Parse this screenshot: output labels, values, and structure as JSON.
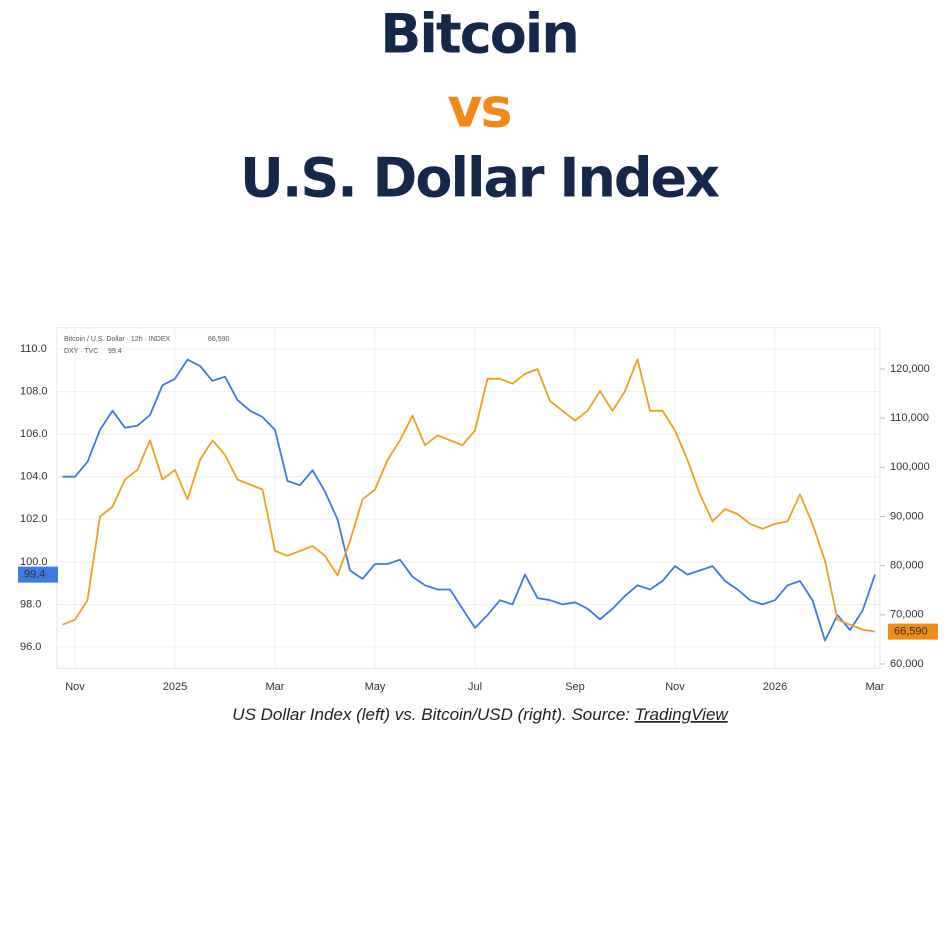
{
  "chart_data": {
    "type": "line",
    "title": [
      "Bitcoin",
      "vs",
      "U.S. Dollar Index"
    ],
    "title_colors": [
      "#16284a",
      "#f28a18",
      "#16284a"
    ],
    "caption": "US Dollar Index (left) vs. Bitcoin/USD (right). Source: ",
    "source": "TradingView",
    "categories": [
      null,
      "Nov",
      null,
      null,
      null,
      null,
      null,
      null,
      null,
      "2025",
      null,
      null,
      null,
      null,
      null,
      null,
      null,
      "Mar",
      null,
      null,
      null,
      null,
      null,
      null,
      null,
      "May",
      null,
      null,
      null,
      null,
      null,
      null,
      null,
      "Jul",
      null,
      null,
      null,
      null,
      null,
      null,
      null,
      "Sep",
      null,
      null,
      null,
      null,
      null,
      null,
      null,
      "Nov",
      null,
      null,
      null,
      null,
      null,
      null,
      null,
      "2026",
      null,
      null,
      null,
      null,
      null,
      null,
      null,
      "Mar"
    ],
    "series": [
      {
        "name": "DXY · TVC",
        "color": "#3d7be0",
        "axis": "y",
        "values": [
          104.0,
          104.0,
          104.7,
          106.2,
          107.1,
          106.3,
          106.4,
          106.9,
          108.3,
          108.6,
          109.5,
          109.2,
          108.5,
          108.7,
          107.6,
          107.1,
          106.8,
          106.2,
          103.8,
          103.6,
          104.3,
          103.3,
          102.0,
          99.6,
          99.2,
          99.9,
          99.9,
          100.1,
          99.3,
          98.9,
          98.7,
          98.7,
          97.8,
          96.9,
          97.5,
          98.2,
          98.0,
          99.4,
          98.3,
          98.2,
          98.0,
          98.1,
          97.8,
          97.3,
          97.8,
          98.4,
          98.9,
          98.7,
          99.1,
          99.8,
          99.4,
          99.6,
          99.8,
          99.1,
          98.7,
          98.2,
          98.0,
          98.2,
          98.9,
          99.1,
          98.2,
          96.3,
          97.5,
          96.8,
          97.7,
          99.4
        ]
      },
      {
        "name": "Bitcoin / U.S. Dollar · 12h · INDEX",
        "color": "#f0a020",
        "axis": "y2",
        "values": [
          68000,
          69000,
          73000,
          90000,
          92000,
          97500,
          99500,
          105500,
          97500,
          99500,
          93500,
          101500,
          105500,
          102500,
          97500,
          96500,
          95500,
          83000,
          82000,
          83000,
          84000,
          82000,
          78000,
          85000,
          93500,
          95500,
          101500,
          105500,
          110500,
          104500,
          106500,
          105500,
          104500,
          107500,
          118000,
          118000,
          117000,
          119000,
          120000,
          113500,
          111500,
          109500,
          111500,
          115500,
          111500,
          115500,
          122000,
          111500,
          111500,
          107500,
          101500,
          94500,
          89000,
          91500,
          90500,
          88500,
          87500,
          88500,
          89000,
          94500,
          88500,
          81000,
          69000,
          68000,
          67000,
          66590
        ],
        "value_labels": [
          null,
          null,
          null,
          null,
          null,
          null,
          null,
          null,
          null,
          null,
          null,
          null,
          null,
          null,
          null,
          null,
          null,
          null,
          null,
          null,
          null,
          null,
          null,
          null,
          null,
          null,
          null,
          null,
          null,
          null,
          null,
          null,
          null,
          null,
          null,
          null,
          null,
          null,
          null,
          null,
          null,
          null,
          null,
          null,
          null,
          null,
          null,
          null,
          null,
          null,
          null,
          null,
          null,
          null,
          null,
          null,
          null,
          null,
          null,
          null,
          null,
          null,
          null,
          null,
          null,
          "66,590"
        ]
      }
    ],
    "ylim": [
      95,
      111
    ],
    "yticks": [
      {
        "value": 96,
        "label": "96.0"
      },
      {
        "value": 98,
        "label": "98.0"
      },
      {
        "value": 100,
        "label": "100.0"
      },
      {
        "value": 102,
        "label": "102.0"
      },
      {
        "value": 104,
        "label": "104.0"
      },
      {
        "value": 106,
        "label": "106.0"
      },
      {
        "value": 108,
        "label": "108.0"
      },
      {
        "value": 110,
        "label": "110.0"
      }
    ],
    "y2lim": [
      59125,
      128400
    ],
    "y2ticks": [
      {
        "value": 60000,
        "label": "60,000"
      },
      {
        "value": 70000,
        "label": "70,000"
      },
      {
        "value": 80000,
        "label": "80,000"
      },
      {
        "value": 90000,
        "label": "90,000"
      },
      {
        "value": 100000,
        "label": "100,000"
      },
      {
        "value": 110000,
        "label": "110,000"
      },
      {
        "value": 120000,
        "label": "120,000"
      }
    ],
    "grid": true
  }
}
